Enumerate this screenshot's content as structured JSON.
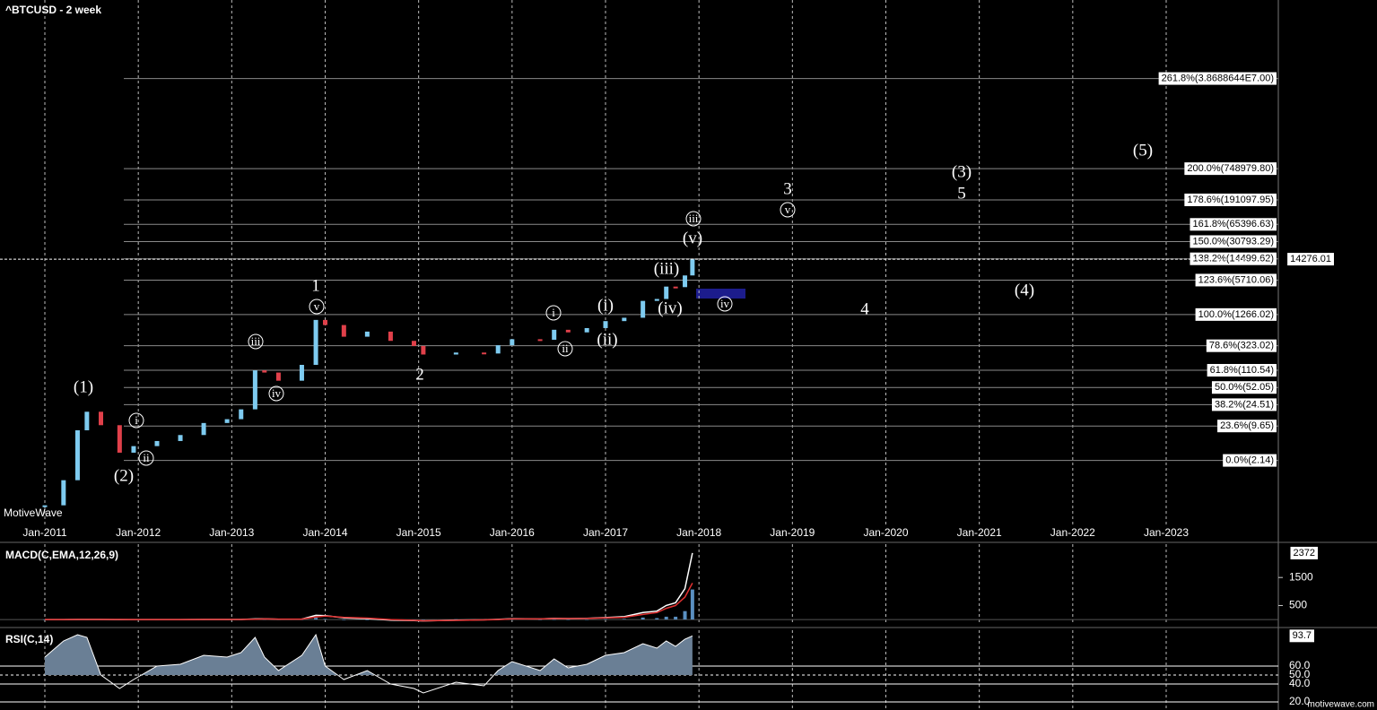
{
  "chart_data": [
    {
      "type": "candlestick",
      "title": "^BTCUSD - 2 week",
      "log_y": true,
      "up_color": "#7ecbf0",
      "down_color": "#e0404a",
      "xlim": [
        2010.52,
        2024.2
      ],
      "ylim": [
        0.13,
        1200000000
      ],
      "xticks": [
        {
          "value": 2011,
          "label": "Jan-2011"
        },
        {
          "value": 2012,
          "label": "Jan-2012"
        },
        {
          "value": 2013,
          "label": "Jan-2013"
        },
        {
          "value": 2014,
          "label": "Jan-2014"
        },
        {
          "value": 2015,
          "label": "Jan-2015"
        },
        {
          "value": 2016,
          "label": "Jan-2016"
        },
        {
          "value": 2017,
          "label": "Jan-2017"
        },
        {
          "value": 2018,
          "label": "Jan-2018"
        },
        {
          "value": 2019,
          "label": "Jan-2019"
        },
        {
          "value": 2020,
          "label": "Jan-2020"
        },
        {
          "value": 2021,
          "label": "Jan-2021"
        },
        {
          "value": 2022,
          "label": "Jan-2022"
        },
        {
          "value": 2023,
          "label": "Jan-2023"
        }
      ],
      "x": [
        2011.0,
        2011.2,
        2011.35,
        2011.45,
        2011.6,
        2011.8,
        2011.95,
        2012.2,
        2012.45,
        2012.7,
        2012.95,
        2013.1,
        2013.25,
        2013.35,
        2013.5,
        2013.75,
        2013.9,
        2014.0,
        2014.2,
        2014.45,
        2014.7,
        2014.95,
        2015.05,
        2015.4,
        2015.7,
        2015.85,
        2016.0,
        2016.3,
        2016.45,
        2016.6,
        2016.8,
        2017.0,
        2017.2,
        2017.4,
        2017.55,
        2017.65,
        2017.75,
        2017.85,
        2017.93
      ],
      "values": [
        0.3,
        0.9,
        8,
        18,
        10,
        3,
        4,
        5,
        6.5,
        11,
        13,
        20,
        110,
        100,
        70,
        140,
        1000,
        800,
        480,
        600,
        400,
        320,
        220,
        240,
        230,
        330,
        430,
        420,
        650,
        580,
        700,
        950,
        1100,
        2300,
        2500,
        4300,
        4200,
        7000,
        14276.01
      ],
      "fib_levels": [
        {
          "value": 38688644,
          "label": "261.8%(3.8688644E7.00)"
        },
        {
          "value": 748979.8,
          "label": "200.0%(748979.80)"
        },
        {
          "value": 191097.95,
          "label": "178.6%(191097.95)"
        },
        {
          "value": 65396.63,
          "label": "161.8%(65396.63)"
        },
        {
          "value": 30793.29,
          "label": "150.0%(30793.29)"
        },
        {
          "value": 14499.62,
          "label": "138.2%(14499.62)"
        },
        {
          "value": 5710.06,
          "label": "123.6%(5710.06)"
        },
        {
          "value": 1266.02,
          "label": "100.0%(1266.02)"
        },
        {
          "value": 323.02,
          "label": "78.6%(323.02)"
        },
        {
          "value": 110.54,
          "label": "61.8%(110.54)"
        },
        {
          "value": 52.05,
          "label": "50.0%(52.05)"
        },
        {
          "value": 24.51,
          "label": "38.2%(24.51)"
        },
        {
          "value": 9.65,
          "label": "23.6%(9.65)"
        },
        {
          "value": 2.14,
          "label": "0.0%(2.14)"
        }
      ],
      "annotations": [
        {
          "text": "(1)"
        },
        {
          "text": "(2)"
        },
        {
          "text": "i",
          "circled": true
        },
        {
          "text": "ii",
          "circled": true
        },
        {
          "text": "iii",
          "circled": true
        },
        {
          "text": "iv",
          "circled": true
        },
        {
          "text": "1"
        },
        {
          "text": "v",
          "circled": true
        },
        {
          "text": "2"
        },
        {
          "text": "i",
          "circled": true
        },
        {
          "text": "ii",
          "circled": true
        },
        {
          "text": "(i)"
        },
        {
          "text": "(ii)"
        },
        {
          "text": "(iii)"
        },
        {
          "text": "(iv)"
        },
        {
          "text": "(v)"
        },
        {
          "text": "iii",
          "circled": true
        },
        {
          "text": "iv",
          "circled": true
        },
        {
          "text": "3"
        },
        {
          "text": "v",
          "circled": true
        },
        {
          "text": "4"
        },
        {
          "text": "(3)"
        },
        {
          "text": "5"
        },
        {
          "text": "(4)"
        },
        {
          "text": "(5)"
        }
      ],
      "watermark": "MotiveWave"
    },
    {
      "type": "line",
      "title": "MACD(C,EMA,12,26,9)",
      "xlim": [
        2010.52,
        2024.2
      ],
      "ylim": [
        -190,
        2690
      ],
      "yticks": [
        1500,
        500
      ],
      "x": [
        2011.0,
        2011.2,
        2011.35,
        2011.45,
        2011.6,
        2011.8,
        2011.95,
        2012.2,
        2012.45,
        2012.7,
        2012.95,
        2013.1,
        2013.25,
        2013.35,
        2013.5,
        2013.75,
        2013.9,
        2014.0,
        2014.2,
        2014.45,
        2014.7,
        2014.95,
        2015.05,
        2015.4,
        2015.7,
        2015.85,
        2016.0,
        2016.3,
        2016.45,
        2016.6,
        2016.8,
        2017.0,
        2017.2,
        2017.4,
        2017.55,
        2017.65,
        2017.75,
        2017.85,
        2017.93
      ],
      "histogram": {
        "color": "#5a8fc0",
        "values": [
          0,
          0.1,
          0.5,
          1,
          0,
          -1,
          -0.5,
          0,
          0.1,
          0.2,
          0.3,
          0.2,
          8,
          5,
          -5,
          1,
          60,
          20,
          -20,
          -20,
          -20,
          -10,
          -5,
          10,
          5,
          5,
          10,
          -2,
          5,
          0,
          2,
          15,
          20,
          70,
          50,
          100,
          100,
          300,
          1072
        ]
      },
      "series": [
        {
          "color": "#ffffff",
          "values": [
            0,
            0.1,
            1,
            3,
            2,
            0,
            -0.5,
            0,
            0.3,
            1,
            1.5,
            2,
            20,
            25,
            10,
            15,
            150,
            140,
            60,
            30,
            -20,
            -40,
            -50,
            -20,
            -10,
            5,
            30,
            20,
            40,
            35,
            40,
            70,
            100,
            250,
            300,
            500,
            600,
            1100,
            2372
          ]
        },
        {
          "color": "#e03030",
          "values": [
            0,
            0,
            0.5,
            2,
            2,
            1,
            0,
            0,
            0.2,
            0.8,
            1.2,
            1.8,
            12,
            20,
            15,
            14,
            90,
            120,
            80,
            50,
            0,
            -30,
            -45,
            -30,
            -15,
            0,
            20,
            22,
            35,
            35,
            38,
            55,
            80,
            180,
            250,
            400,
            500,
            800,
            1300
          ]
        }
      ]
    },
    {
      "type": "area",
      "title": "RSI(C,14)",
      "color": "#6a7f95",
      "xlim": [
        2010.52,
        2024.2
      ],
      "ylim": [
        11,
        100
      ],
      "yticks": [
        {
          "value": 60,
          "label": "60.0"
        },
        {
          "value": 50,
          "label": "50.0"
        },
        {
          "value": 40,
          "label": "40.0"
        },
        {
          "value": 20,
          "label": "20.0"
        }
      ],
      "x": [
        2011.0,
        2011.2,
        2011.35,
        2011.45,
        2011.6,
        2011.8,
        2011.95,
        2012.2,
        2012.45,
        2012.7,
        2012.95,
        2013.1,
        2013.25,
        2013.35,
        2013.5,
        2013.75,
        2013.9,
        2014.0,
        2014.2,
        2014.45,
        2014.7,
        2014.95,
        2015.05,
        2015.4,
        2015.7,
        2015.85,
        2016.0,
        2016.3,
        2016.45,
        2016.6,
        2016.8,
        2017.0,
        2017.2,
        2017.4,
        2017.55,
        2017.65,
        2017.75,
        2017.85,
        2017.93
      ],
      "values": [
        70,
        88,
        95,
        92,
        50,
        35,
        45,
        60,
        62,
        72,
        70,
        75,
        92,
        70,
        55,
        72,
        95,
        60,
        45,
        55,
        40,
        35,
        30,
        42,
        38,
        55,
        65,
        55,
        68,
        58,
        62,
        72,
        75,
        85,
        80,
        88,
        82,
        90,
        93.7
      ],
      "watermark": "motivewave.com"
    }
  ]
}
